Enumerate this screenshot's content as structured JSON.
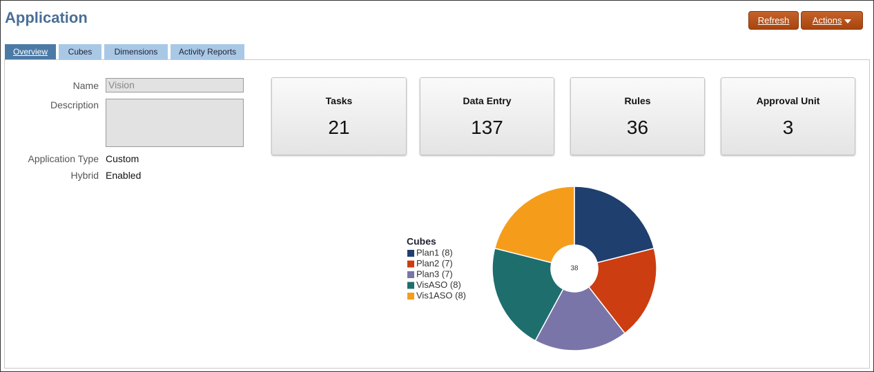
{
  "header": {
    "title": "Application",
    "buttons": [
      "Refresh",
      "Actions"
    ]
  },
  "tabs": [
    "Overview",
    "Cubes",
    "Dimensions",
    "Activity Reports"
  ],
  "form": [
    {
      "label": "Name",
      "value": "Vision"
    },
    {
      "label": "Description",
      "value": ""
    },
    {
      "label": "Application Type",
      "value": "Custom"
    },
    {
      "label": "Hybrid",
      "value": "Enabled"
    }
  ],
  "cards": [
    {
      "title": "Tasks",
      "value": 21
    },
    {
      "title": "Data Entry",
      "value": 137
    },
    {
      "title": "Rules",
      "value": 36
    },
    {
      "title": "Approval Unit",
      "value": 3
    }
  ],
  "chart_data": {
    "type": "donut",
    "title": "Cubes",
    "labels": [
      "Plan1 (8)",
      "Plan2 (7)",
      "Plan3 (7)",
      "VisASO (8)",
      "Vis1ASO (8)"
    ],
    "values": [
      8,
      7,
      7,
      8,
      8
    ],
    "colors": [
      "#1f3f6e",
      "#cc3d12",
      "#7a75a8",
      "#1f6e6e",
      "#f59d1b"
    ],
    "center_label": 38
  }
}
